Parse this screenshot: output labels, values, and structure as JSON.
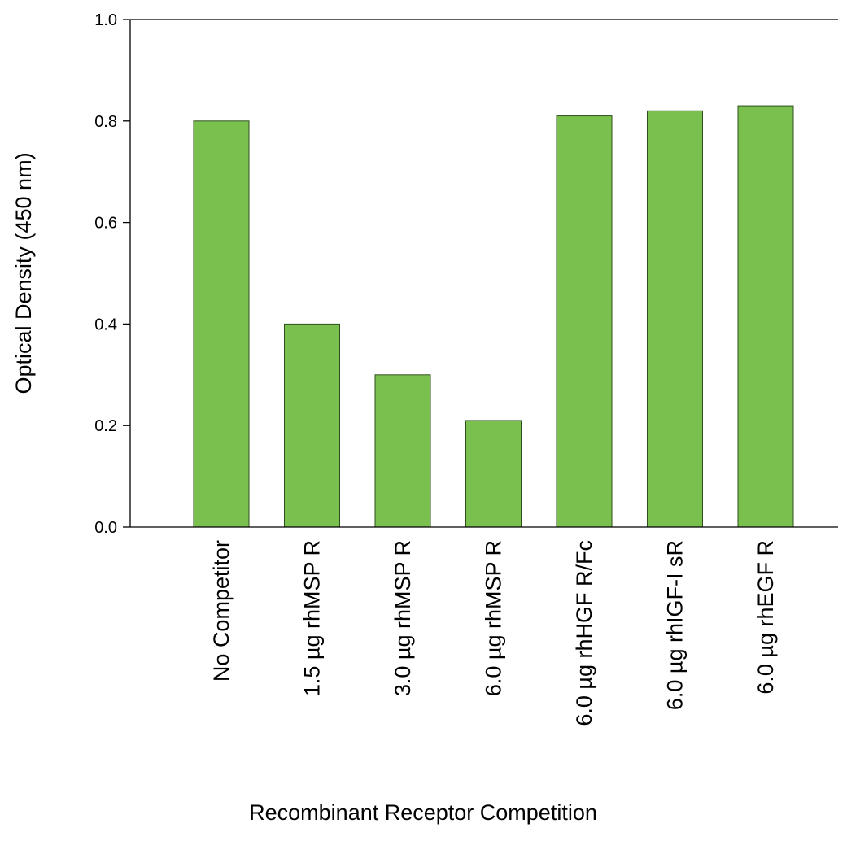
{
  "chart_data": {
    "type": "bar",
    "title": "",
    "xlabel": "Recombinant Receptor Competition",
    "ylabel": "Optical Density (450 nm)",
    "categories": [
      "No Competitor",
      "1.5 µg rhMSP R",
      "3.0 µg rhMSP R",
      "6.0 µg rhMSP R",
      "6.0 µg rhHGF R/Fc",
      "6.0 µg rhIGF-I sR",
      "6.0 µg rhEGF R"
    ],
    "values": [
      0.8,
      0.4,
      0.3,
      0.21,
      0.81,
      0.82,
      0.83
    ],
    "ylim": [
      0.0,
      1.0
    ],
    "yticks": [
      "0.0",
      "0.2",
      "0.4",
      "0.6",
      "0.8",
      "1.0"
    ],
    "grid": false,
    "legend": "none",
    "bar_color": "#7ac04e",
    "bar_edge_color": "#2f4f1f"
  }
}
